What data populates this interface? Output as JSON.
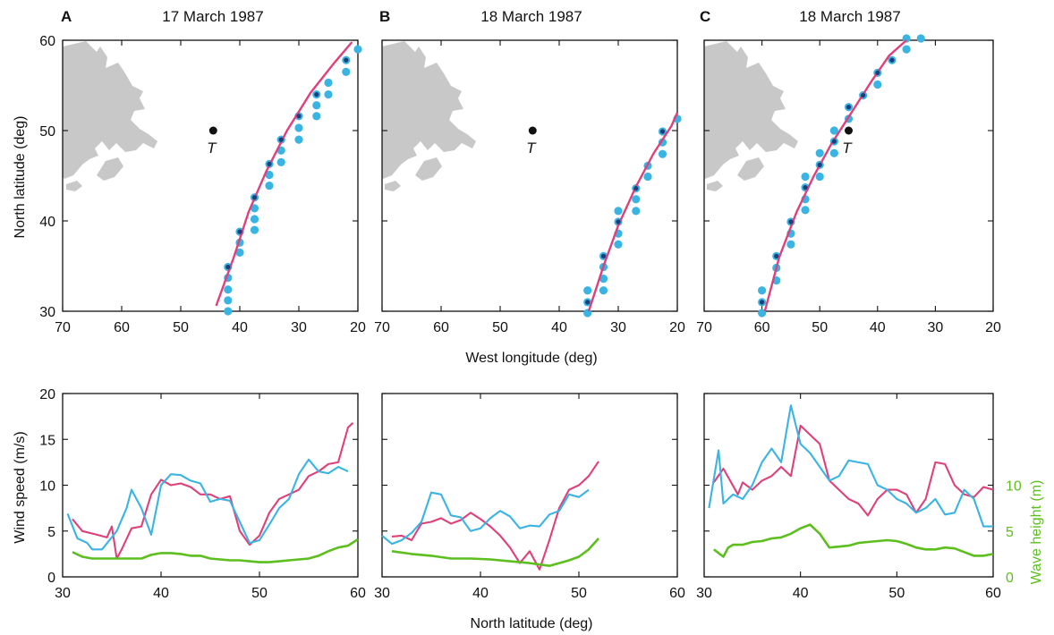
{
  "panel_letters": [
    "A",
    "B",
    "C"
  ],
  "panel_titles": [
    "17 March 1987",
    "18 March 1987",
    "18 March 1987"
  ],
  "map_x_label": "West longitude (deg)",
  "map_y_label": "North latitude (deg)",
  "wind_x_label": "North latitude (deg)",
  "wind_y_label": "Wind speed (m/s)",
  "wave_y_label": "Wave height (m)",
  "map_x_ticks": [
    "70",
    "60",
    "50",
    "40",
    "30",
    "20"
  ],
  "map_y_ticks": [
    "60",
    "50",
    "40",
    "30"
  ],
  "wind_x_ticks": [
    "30",
    "40",
    "50",
    "60"
  ],
  "wind_y_ticks": [
    "20",
    "15",
    "10",
    "5",
    "0"
  ],
  "wave_y_ticks": [
    "10",
    "5",
    "0"
  ],
  "target_label": "T",
  "colors": {
    "track": "#e0407a",
    "points": "#3ab4e3",
    "wave": "#5cbf1e",
    "land": "#c8c8c8",
    "frame": "#111111"
  },
  "chart_data": [
    {
      "type": "scatter",
      "panel": "A",
      "title": "17 March 1987",
      "xlabel": "West longitude (deg)",
      "ylabel": "North latitude (deg)",
      "xlim": [
        70,
        20
      ],
      "ylim": [
        30,
        60
      ],
      "target": {
        "lon": 44.5,
        "lat": 50
      },
      "track_line": [
        [
          44,
          30.6
        ],
        [
          41,
          36
        ],
        [
          38.5,
          41
        ],
        [
          35.5,
          45.5
        ],
        [
          32,
          50
        ],
        [
          28,
          54.2
        ],
        [
          24,
          57.5
        ],
        [
          21,
          59.8
        ]
      ],
      "points": [
        [
          42,
          30
        ],
        [
          42,
          31.2
        ],
        [
          42,
          32.4
        ],
        [
          42,
          33.7
        ],
        [
          42,
          34.9
        ],
        [
          40,
          36.5
        ],
        [
          40,
          37.6
        ],
        [
          40,
          38.8
        ],
        [
          37.5,
          39
        ],
        [
          37.5,
          40.2
        ],
        [
          37.5,
          41.4
        ],
        [
          37.5,
          42.6
        ],
        [
          35,
          43.9
        ],
        [
          35,
          45.1
        ],
        [
          35,
          46.3
        ],
        [
          33,
          46.5
        ],
        [
          33,
          47.8
        ],
        [
          33,
          49
        ],
        [
          30,
          49
        ],
        [
          30,
          50.3
        ],
        [
          30,
          51.6
        ],
        [
          27,
          51.6
        ],
        [
          27,
          52.8
        ],
        [
          27,
          54
        ],
        [
          25,
          54
        ],
        [
          25,
          55.3
        ],
        [
          22,
          56.5
        ],
        [
          22,
          57.8
        ],
        [
          20,
          59
        ]
      ],
      "points_on_track": [
        [
          42,
          34.9
        ],
        [
          40,
          38.8
        ],
        [
          37.5,
          42.6
        ],
        [
          35,
          46.3
        ],
        [
          33,
          49
        ],
        [
          30,
          51.6
        ],
        [
          27,
          54
        ],
        [
          22,
          57.8
        ]
      ]
    },
    {
      "type": "scatter",
      "panel": "B",
      "title": "18 March 1987",
      "xlabel": "West longitude (deg)",
      "ylabel": "North latitude (deg)",
      "xlim": [
        70,
        20
      ],
      "ylim": [
        30,
        60
      ],
      "target": {
        "lon": 44.5,
        "lat": 50
      },
      "track_line": [
        [
          35,
          30
        ],
        [
          32.5,
          35
        ],
        [
          30,
          39.5
        ],
        [
          27,
          43.8
        ],
        [
          24,
          47.5
        ],
        [
          21,
          50.5
        ],
        [
          20,
          52
        ]
      ],
      "points": [
        [
          35.2,
          29.8
        ],
        [
          35.2,
          31
        ],
        [
          35.2,
          32.3
        ],
        [
          32.5,
          32.3
        ],
        [
          32.5,
          33.6
        ],
        [
          32.5,
          34.9
        ],
        [
          32.5,
          36.1
        ],
        [
          30,
          37.4
        ],
        [
          30,
          38.6
        ],
        [
          30,
          39.9
        ],
        [
          30,
          41.1
        ],
        [
          27,
          41.1
        ],
        [
          27,
          42.4
        ],
        [
          27,
          43.6
        ],
        [
          25,
          44.9
        ],
        [
          25,
          46.1
        ],
        [
          22.5,
          47.4
        ],
        [
          22.5,
          48.7
        ],
        [
          22.5,
          49.9
        ],
        [
          20,
          51.3
        ]
      ],
      "points_on_track": [
        [
          35.2,
          31
        ],
        [
          32.5,
          36.1
        ],
        [
          30,
          39.9
        ],
        [
          27,
          43.6
        ],
        [
          22.5,
          49.9
        ]
      ]
    },
    {
      "type": "scatter",
      "panel": "C",
      "title": "18 March 1987",
      "xlabel": "West longitude (deg)",
      "ylabel": "North latitude (deg)",
      "xlim": [
        70,
        20
      ],
      "ylim": [
        30,
        60
      ],
      "target": {
        "lon": 45,
        "lat": 50
      },
      "track_line": [
        [
          59.5,
          30
        ],
        [
          57,
          36
        ],
        [
          54,
          41
        ],
        [
          51,
          45
        ],
        [
          48,
          48.5
        ],
        [
          45,
          51.5
        ],
        [
          41,
          55.5
        ],
        [
          38,
          58.3
        ],
        [
          35,
          60
        ]
      ],
      "points": [
        [
          60,
          29.8
        ],
        [
          60,
          31
        ],
        [
          60,
          32.3
        ],
        [
          57.5,
          33.4
        ],
        [
          57.5,
          34.8
        ],
        [
          57.5,
          36.1
        ],
        [
          55,
          37.4
        ],
        [
          55,
          38.6
        ],
        [
          55,
          39.9
        ],
        [
          52.5,
          41.2
        ],
        [
          52.5,
          42.4
        ],
        [
          52.5,
          43.7
        ],
        [
          52.5,
          44.9
        ],
        [
          50,
          44.9
        ],
        [
          50,
          46.2
        ],
        [
          50,
          47.5
        ],
        [
          47.5,
          47.5
        ],
        [
          47.5,
          48.8
        ],
        [
          47.5,
          50
        ],
        [
          45,
          51.3
        ],
        [
          45,
          52.6
        ],
        [
          42.5,
          53.9
        ],
        [
          40,
          55.1
        ],
        [
          40,
          56.4
        ],
        [
          37.5,
          57.8
        ],
        [
          35,
          59
        ],
        [
          35,
          60.2
        ],
        [
          32.5,
          60.2
        ]
      ],
      "points_on_track": [
        [
          60,
          31
        ],
        [
          57.5,
          36.1
        ],
        [
          55,
          39.9
        ],
        [
          52.5,
          43.7
        ],
        [
          50,
          46.2
        ],
        [
          47.5,
          48.8
        ],
        [
          45,
          52.6
        ],
        [
          42.5,
          53.9
        ],
        [
          40,
          56.4
        ],
        [
          37.5,
          57.8
        ]
      ]
    },
    {
      "type": "line",
      "panel": "A",
      "xlabel": "",
      "ylabel": "Wind speed (m/s)",
      "xlim": [
        30,
        60
      ],
      "ylim": [
        0,
        20
      ],
      "series": [
        {
          "color": "#e0407a",
          "x": [
            31,
            32,
            33.5,
            34.5,
            35,
            35.5,
            36,
            37,
            38,
            39,
            40,
            41,
            42,
            43,
            44,
            45,
            46,
            47,
            48,
            49,
            50,
            51,
            52,
            53,
            54,
            55,
            56,
            57,
            58,
            59,
            59.5
          ],
          "y": [
            6.3,
            5,
            4.6,
            4.3,
            5.5,
            2,
            3,
            5.3,
            5.5,
            9,
            10.6,
            10,
            10.2,
            9.8,
            9,
            9,
            8.5,
            8.8,
            5,
            3.5,
            4.5,
            7,
            8.5,
            9,
            9.5,
            11,
            11.5,
            12.3,
            12.5,
            16.3,
            16.8
          ]
        },
        {
          "color": "#3ab4e3",
          "x": [
            30.5,
            31.5,
            32.5,
            33,
            34,
            35.5,
            36.5,
            37,
            38,
            39,
            40,
            41,
            42,
            43,
            44,
            45,
            46,
            47,
            48,
            49,
            50,
            51,
            52,
            53,
            54,
            55,
            56,
            57,
            58,
            59
          ],
          "y": [
            6.9,
            4.2,
            3.7,
            3,
            3,
            5,
            7.5,
            9.5,
            7.5,
            4.6,
            10,
            11.2,
            11.1,
            10.5,
            10.2,
            8.2,
            8.5,
            8.3,
            6,
            3.7,
            4,
            5.7,
            7.5,
            8.5,
            11.2,
            12.8,
            11.5,
            11.3,
            12,
            11.5
          ]
        },
        {
          "color": "#5cbf1e",
          "axis": "wave",
          "x": [
            31,
            32,
            33,
            35,
            37,
            38,
            39,
            40,
            41,
            42,
            43,
            44,
            45,
            46,
            47,
            48,
            49,
            50,
            51,
            52,
            53,
            54,
            55,
            56,
            57,
            58,
            59,
            60
          ],
          "y": [
            2.7,
            2.2,
            2,
            2,
            2,
            2,
            2.4,
            2.6,
            2.6,
            2.5,
            2.3,
            2.3,
            2,
            1.9,
            1.8,
            1.8,
            1.7,
            1.6,
            1.6,
            1.7,
            1.8,
            1.9,
            2,
            2.3,
            2.8,
            3.2,
            3.4,
            4.1
          ]
        }
      ]
    },
    {
      "type": "line",
      "panel": "B",
      "xlabel": "North latitude (deg)",
      "ylabel": "",
      "xlim": [
        30,
        60
      ],
      "ylim": [
        0,
        20
      ],
      "series": [
        {
          "color": "#e0407a",
          "x": [
            31,
            32,
            33,
            34,
            35,
            36,
            37,
            38,
            39,
            40,
            41,
            42,
            43,
            44,
            45,
            46,
            47,
            48,
            49,
            50,
            51,
            52
          ],
          "y": [
            4.4,
            4.5,
            4,
            5.8,
            6,
            6.4,
            5.8,
            6.2,
            7,
            6.3,
            5.5,
            4.5,
            3.2,
            1.5,
            2.8,
            0.8,
            4,
            7.5,
            9.5,
            10,
            11,
            12.6
          ]
        },
        {
          "color": "#3ab4e3",
          "x": [
            30,
            31,
            32,
            33,
            34,
            35,
            36,
            37,
            38,
            39,
            40,
            41,
            42,
            43,
            44,
            45,
            46,
            47,
            48,
            49,
            50,
            51
          ],
          "y": [
            4.5,
            3.6,
            4,
            4.8,
            6,
            9.2,
            9,
            6.7,
            6.5,
            5,
            5.3,
            6.4,
            7.2,
            6.6,
            5.3,
            5.6,
            5.5,
            6.8,
            7.2,
            9,
            8.7,
            9.5
          ]
        },
        {
          "color": "#5cbf1e",
          "axis": "wave",
          "x": [
            31,
            33,
            35,
            37,
            39,
            41,
            43,
            45,
            47,
            48,
            49,
            50,
            51,
            52
          ],
          "y": [
            2.8,
            2.5,
            2.3,
            2,
            2,
            1.9,
            1.7,
            1.5,
            1.2,
            1.5,
            1.8,
            2.2,
            3,
            4.2
          ]
        }
      ]
    },
    {
      "type": "line",
      "panel": "C",
      "xlabel": "",
      "ylabel": "Wave height (m)",
      "xlim": [
        30,
        60
      ],
      "ylim": [
        0,
        20
      ],
      "series": [
        {
          "color": "#e0407a",
          "x": [
            31,
            32,
            33.5,
            34,
            35,
            36,
            37,
            38,
            39,
            40,
            41,
            42,
            43,
            44,
            45,
            46,
            47,
            48,
            49,
            50,
            51,
            52,
            53,
            54,
            55,
            56,
            57,
            58,
            59,
            60
          ],
          "y": [
            10.3,
            11.8,
            9,
            10.3,
            9.5,
            10.5,
            11,
            12,
            11,
            16.5,
            15.5,
            14.5,
            10.5,
            9.5,
            8.5,
            8,
            6.7,
            8.5,
            9.5,
            9.5,
            9,
            7,
            8.5,
            12.5,
            12.3,
            10,
            9,
            8.7,
            9.8,
            9.5
          ]
        },
        {
          "color": "#3ab4e3",
          "x": [
            30.5,
            31.5,
            32,
            33,
            34,
            35,
            36,
            37,
            38,
            39,
            40,
            41,
            42,
            43,
            44,
            45,
            46,
            47,
            48,
            49,
            50,
            51,
            52,
            53,
            54,
            55,
            56,
            57,
            58,
            59,
            60
          ],
          "y": [
            7.5,
            13.8,
            8,
            9,
            8.5,
            10,
            12.5,
            14,
            12.5,
            18.7,
            14.5,
            13.5,
            12,
            10.5,
            11,
            12.7,
            12.5,
            12.3,
            10,
            9.5,
            8.5,
            8,
            7,
            7.5,
            8.5,
            6.8,
            7,
            9.5,
            8.5,
            5.5,
            5.5
          ]
        },
        {
          "color": "#5cbf1e",
          "axis": "wave",
          "x": [
            31,
            32,
            32.5,
            33,
            34,
            35,
            36,
            37,
            38,
            39,
            40,
            41,
            42,
            43,
            44,
            45,
            46,
            47,
            48,
            49,
            50,
            51,
            52,
            53,
            54,
            55,
            56,
            57,
            58,
            59,
            60
          ],
          "y": [
            3,
            2.2,
            3.2,
            3.5,
            3.5,
            3.8,
            3.9,
            4.2,
            4.3,
            4.7,
            5.3,
            5.7,
            4.7,
            3.2,
            3.3,
            3.4,
            3.7,
            3.8,
            3.9,
            4,
            3.9,
            3.6,
            3.2,
            3,
            3,
            3.2,
            3.1,
            2.7,
            2.3,
            2.3,
            2.5
          ]
        }
      ]
    }
  ]
}
